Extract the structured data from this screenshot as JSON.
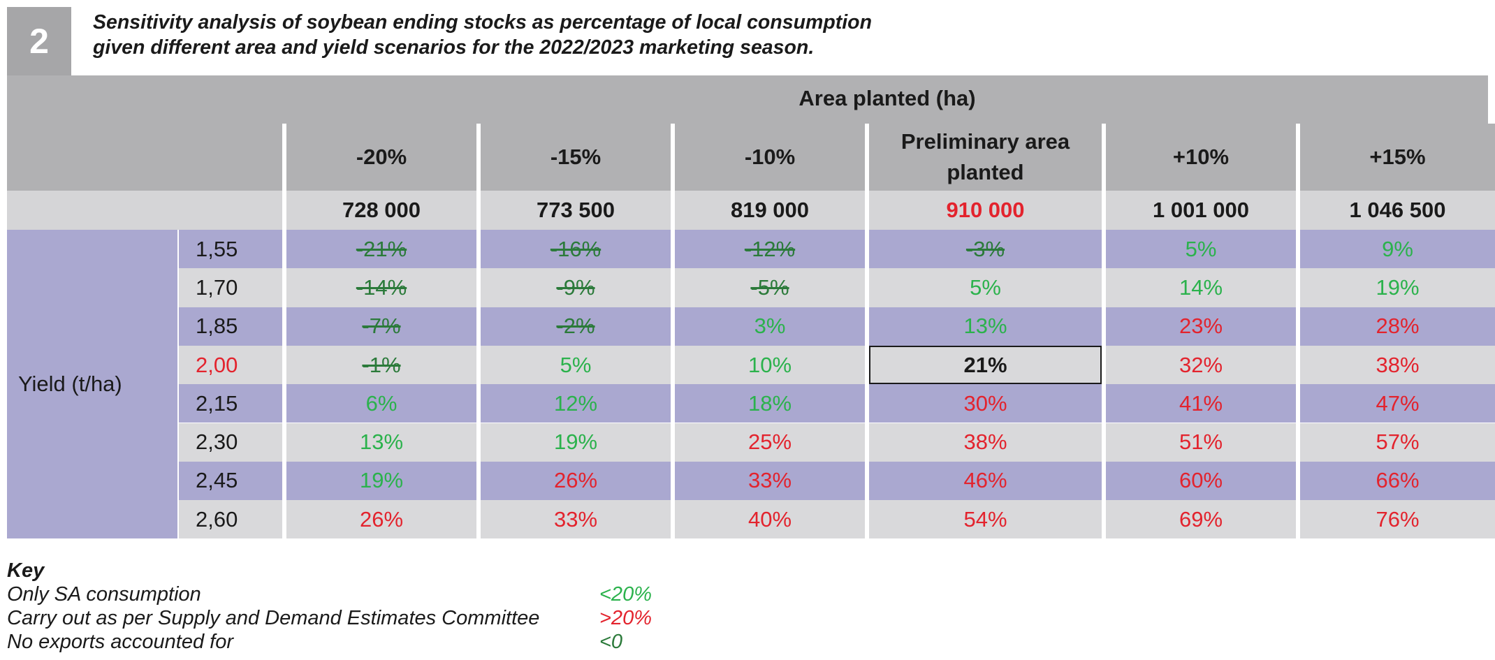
{
  "badge": "2",
  "title_lines": [
    "Sensitivity analysis of soybean ending stocks as percentage of local consumption",
    "given different area and yield scenarios for the 2022/2023 marketing season."
  ],
  "table": {
    "area_header": "Area planted (ha)",
    "yield_header": "Yield (t/ha)",
    "columns": [
      {
        "label": "-20%",
        "area": "728 000"
      },
      {
        "label": "-15%",
        "area": "773 500"
      },
      {
        "label": "-10%",
        "area": "819 000"
      },
      {
        "label": "Preliminary area planted",
        "area": "910 000"
      },
      {
        "label": "+10%",
        "area": "1 001 000"
      },
      {
        "label": "+15%",
        "area": "1 046 500"
      }
    ],
    "rows": [
      {
        "yield": "1,55",
        "values": [
          "-21%",
          "-16%",
          "-12%",
          "-3%",
          "5%",
          "9%"
        ]
      },
      {
        "yield": "1,70",
        "values": [
          "-14%",
          "-9%",
          "-5%",
          "5%",
          "14%",
          "19%"
        ]
      },
      {
        "yield": "1,85",
        "values": [
          "-7%",
          "-2%",
          "3%",
          "13%",
          "23%",
          "28%"
        ]
      },
      {
        "yield": "2,00",
        "values": [
          "-1%",
          "5%",
          "10%",
          "21%",
          "32%",
          "38%"
        ]
      },
      {
        "yield": "2,15",
        "values": [
          "6%",
          "12%",
          "18%",
          "30%",
          "41%",
          "47%"
        ]
      },
      {
        "yield": "2,30",
        "values": [
          "13%",
          "19%",
          "25%",
          "38%",
          "51%",
          "57%"
        ]
      },
      {
        "yield": "2,45",
        "values": [
          "19%",
          "26%",
          "33%",
          "46%",
          "60%",
          "66%"
        ]
      },
      {
        "yield": "2,60",
        "values": [
          "26%",
          "33%",
          "40%",
          "54%",
          "69%",
          "76%"
        ]
      }
    ]
  },
  "key": {
    "title": "Key",
    "items": [
      {
        "label": "Only SA consumption",
        "value": "<20%"
      },
      {
        "label": "Carry out as per Supply and Demand Estimates Committee",
        "value": ">20%"
      },
      {
        "label": "No exports accounted for",
        "value": "<0"
      }
    ]
  },
  "colors": {
    "green": "#2bb24c",
    "red": "#e3232d",
    "negative": "#2b7a3a",
    "purple_row": "#aaa8d0",
    "gray_row": "#d9d9db",
    "header_gray": "#b1b1b3"
  }
}
